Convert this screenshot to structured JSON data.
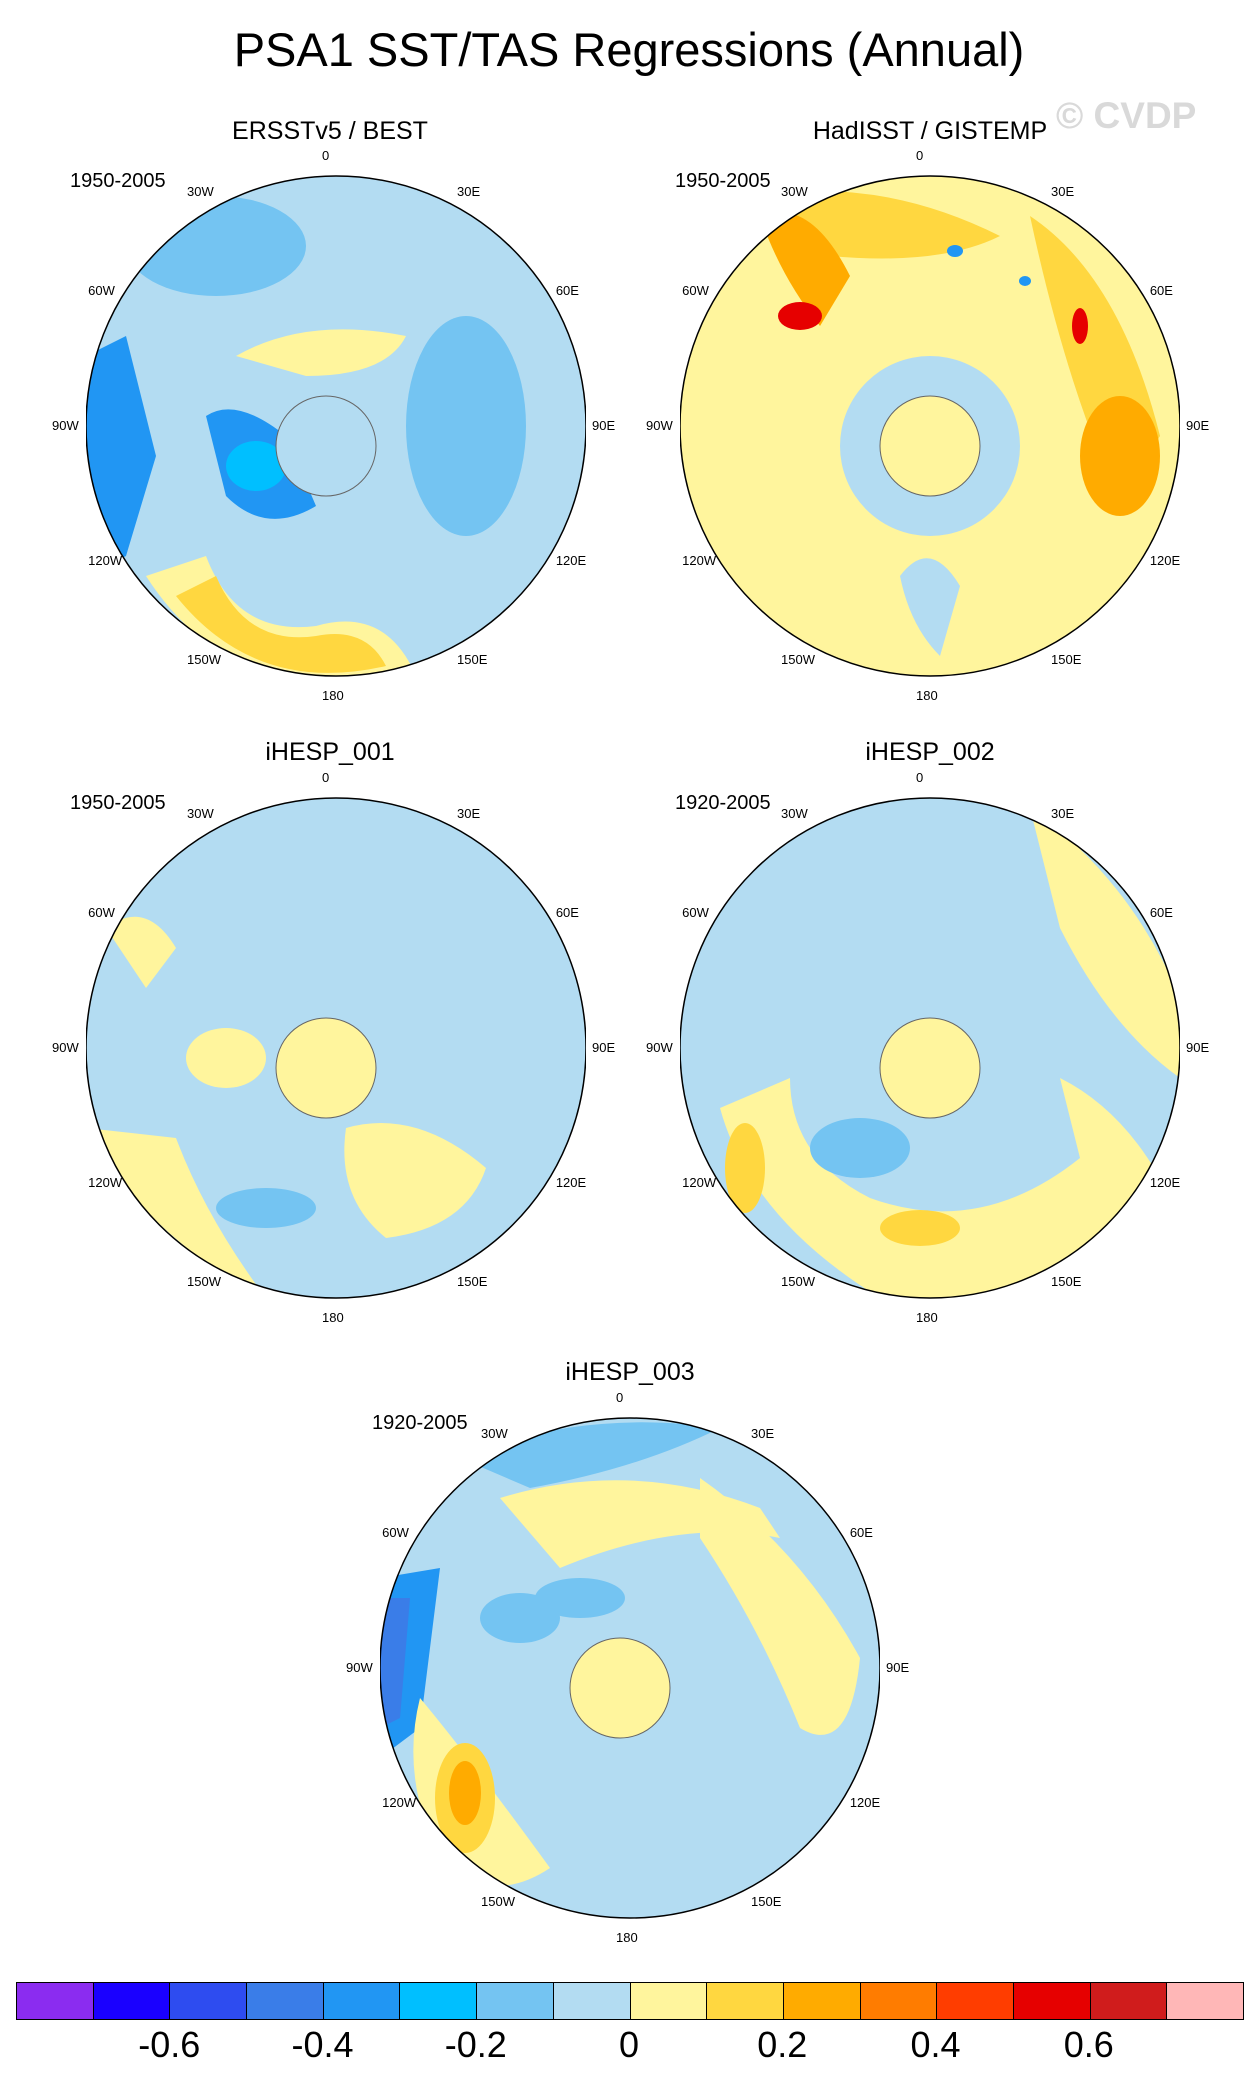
{
  "title": "PSA1 SST/TAS Regressions (Annual)",
  "watermark": "© CVDP",
  "panels": [
    {
      "name": "ERSSTv5 / BEST",
      "period": "1950-2005"
    },
    {
      "name": "HadISST / GISTEMP",
      "period": "1950-2005"
    },
    {
      "name": "iHESP_001",
      "period": "1950-2005"
    },
    {
      "name": "iHESP_002",
      "period": "1920-2005"
    },
    {
      "name": "iHESP_003",
      "period": "1920-2005"
    }
  ],
  "lon_labels": {
    "l0": "0",
    "l30e": "30E",
    "l60e": "60E",
    "l90e": "90E",
    "l120e": "120E",
    "l150e": "150E",
    "l180": "180",
    "l150w": "150W",
    "l120w": "120W",
    "l90w": "90W",
    "l60w": "60W",
    "l30w": "30W"
  },
  "colorbar": {
    "colors": [
      "#8b2cf0",
      "#1a00ff",
      "#2e4cf0",
      "#3a7de8",
      "#2196f3",
      "#00bfff",
      "#74c4f2",
      "#b3dcf2",
      "#fff59d",
      "#ffd740",
      "#ffab00",
      "#ff7c00",
      "#ff3d00",
      "#e60000",
      "#d01c1c",
      "#ffb7b7"
    ],
    "labels": [
      "-0.6",
      "-0.4",
      "-0.2",
      "0",
      "0.2",
      "0.4",
      "0.6"
    ]
  },
  "map_colors": {
    "neutral_neg": "#b3dcf2",
    "neutral_pos": "#fff59d",
    "neg1": "#74c4f2",
    "neg2": "#2196f3",
    "neg3": "#00bfff",
    "pos1": "#ffd740",
    "pos2": "#ffab00",
    "pos3": "#ff7c00",
    "pos4": "#e60000"
  }
}
